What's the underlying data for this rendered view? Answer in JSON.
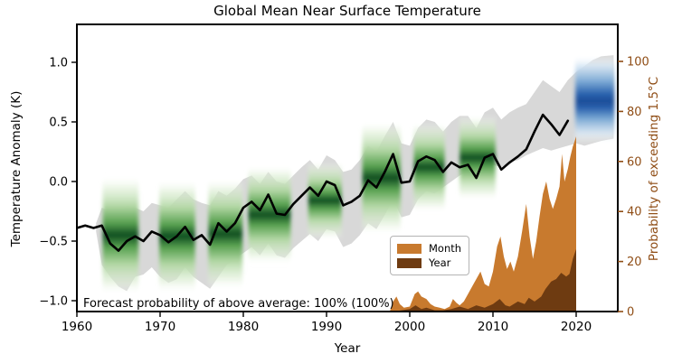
{
  "title": "Global Mean Near Surface Temperature",
  "annotation": {
    "text": "Forecast probability of above average: 100% (100%)"
  },
  "axes": {
    "left": {
      "label": "Temperature Anomaly (K)",
      "ticks": [
        {
          "v": 1.0,
          "label": "1.0"
        },
        {
          "v": 0.5,
          "label": "0.5"
        },
        {
          "v": 0.0,
          "label": "0.0"
        },
        {
          "v": -0.5,
          "label": "−0.5"
        },
        {
          "v": -1.0,
          "label": "−1.0"
        }
      ]
    },
    "right": {
      "label": "Probability of exceeding 1.5°C",
      "color": "#8f4d15",
      "ticks": [
        {
          "v": 0,
          "label": "0"
        },
        {
          "v": 20,
          "label": "20"
        },
        {
          "v": 40,
          "label": "40"
        },
        {
          "v": 60,
          "label": "60"
        },
        {
          "v": 80,
          "label": "80"
        },
        {
          "v": 100,
          "label": "100"
        }
      ]
    },
    "x": {
      "label": "Year",
      "ticks": [
        {
          "v": 1960,
          "label": "1960"
        },
        {
          "v": 1970,
          "label": "1970"
        },
        {
          "v": 1980,
          "label": "1980"
        },
        {
          "v": 1990,
          "label": "1990"
        },
        {
          "v": 2000,
          "label": "2000"
        },
        {
          "v": 2010,
          "label": "2010"
        },
        {
          "v": 2020,
          "label": "2020"
        }
      ]
    }
  },
  "legend": {
    "items": [
      {
        "label": "Month",
        "color": "#c87a2e"
      },
      {
        "label": "Year",
        "color": "#6e3b11"
      }
    ]
  },
  "colors": {
    "observed_line": "#000000",
    "uncertainty_band": "#d8d8d8",
    "month_area": "#c87a2e",
    "year_area": "#6e3b11",
    "right_axis": "#8f4d15",
    "hindcast_core_green": "#0e4d20",
    "forecast_core_blue": "#1b4c97"
  },
  "chart_data": {
    "type": "line",
    "title": "Global Mean Near Surface Temperature",
    "xlabel": "Year",
    "ylabel_left": "Temperature Anomaly (K)",
    "ylabel_right": "Probability of exceeding 1.5°C",
    "xlim": [
      1960,
      2025
    ],
    "ylim_left": [
      -1.09,
      1.32
    ],
    "ylim_right": [
      0,
      115
    ],
    "grid": false,
    "legend_position": "lower-center-right",
    "observed": {
      "name": "observed annual global mean temperature anomaly (K)",
      "x": [
        1960,
        1961,
        1962,
        1963,
        1964,
        1965,
        1966,
        1967,
        1968,
        1969,
        1970,
        1971,
        1972,
        1973,
        1974,
        1975,
        1976,
        1977,
        1978,
        1979,
        1980,
        1981,
        1982,
        1983,
        1984,
        1985,
        1986,
        1987,
        1988,
        1989,
        1990,
        1991,
        1992,
        1993,
        1994,
        1995,
        1996,
        1997,
        1998,
        1999,
        2000,
        2001,
        2002,
        2003,
        2004,
        2005,
        2006,
        2007,
        2008,
        2009,
        2010,
        2011,
        2012,
        2013,
        2014,
        2015,
        2016,
        2017,
        2018,
        2019
      ],
      "y": [
        -0.39,
        -0.37,
        -0.39,
        -0.37,
        -0.52,
        -0.58,
        -0.5,
        -0.46,
        -0.5,
        -0.42,
        -0.45,
        -0.51,
        -0.46,
        -0.38,
        -0.49,
        -0.45,
        -0.53,
        -0.35,
        -0.42,
        -0.35,
        -0.22,
        -0.17,
        -0.24,
        -0.11,
        -0.27,
        -0.28,
        -0.19,
        -0.12,
        -0.05,
        -0.12,
        0.0,
        -0.03,
        -0.2,
        -0.17,
        -0.12,
        0.01,
        -0.05,
        0.08,
        0.23,
        -0.01,
        0.0,
        0.17,
        0.21,
        0.18,
        0.08,
        0.16,
        0.12,
        0.14,
        0.03,
        0.2,
        0.23,
        0.1,
        0.16,
        0.21,
        0.27,
        0.42,
        0.56,
        0.48,
        0.39,
        0.51
      ]
    },
    "uncertainty_band": {
      "name": "hindcast/forecast ensemble spread (K)",
      "x": [
        1962.3,
        1963,
        1964,
        1965,
        1966,
        1967,
        1968,
        1969,
        1970,
        1971,
        1972,
        1973,
        1974,
        1975,
        1976,
        1977,
        1978,
        1979,
        1980,
        1981,
        1982,
        1983,
        1984,
        1985,
        1986,
        1987,
        1988,
        1989,
        1990,
        1991,
        1992,
        1993,
        1994,
        1995,
        1996,
        1997,
        1998,
        1999,
        2000,
        2001,
        2002,
        2003,
        2004,
        2005,
        2006,
        2007,
        2008,
        2009,
        2010,
        2011,
        2012,
        2013,
        2014,
        2015,
        2016,
        2017,
        2018,
        2019,
        2020,
        2021,
        2022,
        2023,
        2024.5
      ],
      "upper": [
        -0.35,
        -0.22,
        -0.25,
        -0.28,
        -0.2,
        -0.22,
        -0.25,
        -0.18,
        -0.2,
        -0.22,
        -0.15,
        -0.08,
        -0.15,
        -0.18,
        -0.2,
        -0.08,
        -0.12,
        -0.06,
        0.02,
        0.05,
        -0.02,
        0.08,
        0.0,
        -0.02,
        0.05,
        0.12,
        0.18,
        0.1,
        0.22,
        0.18,
        0.08,
        0.1,
        0.18,
        0.3,
        0.25,
        0.38,
        0.5,
        0.32,
        0.3,
        0.45,
        0.52,
        0.5,
        0.42,
        0.5,
        0.55,
        0.55,
        0.45,
        0.58,
        0.62,
        0.52,
        0.58,
        0.62,
        0.65,
        0.75,
        0.85,
        0.8,
        0.75,
        0.85,
        0.92,
        0.97,
        1.02,
        1.05,
        1.06
      ],
      "lower": [
        -0.42,
        -0.7,
        -0.8,
        -0.88,
        -0.92,
        -0.8,
        -0.78,
        -0.72,
        -0.8,
        -0.85,
        -0.82,
        -0.72,
        -0.8,
        -0.85,
        -0.9,
        -0.8,
        -0.7,
        -0.65,
        -0.6,
        -0.55,
        -0.62,
        -0.52,
        -0.62,
        -0.64,
        -0.56,
        -0.5,
        -0.44,
        -0.5,
        -0.4,
        -0.42,
        -0.55,
        -0.52,
        -0.45,
        -0.35,
        -0.4,
        -0.28,
        -0.15,
        -0.3,
        -0.28,
        -0.15,
        -0.08,
        -0.1,
        -0.05,
        0.0,
        0.05,
        0.08,
        0.05,
        0.1,
        0.14,
        0.12,
        0.16,
        0.18,
        0.22,
        0.25,
        0.28,
        0.26,
        0.28,
        0.3,
        0.32,
        0.3,
        0.32,
        0.34,
        0.36
      ]
    },
    "hindcast_patches": {
      "name": "hindcast probability smears (green, Greens colormap)",
      "patches": [
        {
          "x0": 1963.1,
          "x1": 1967.4,
          "center": -0.45,
          "half": 0.5
        },
        {
          "x0": 1969.9,
          "x1": 1974.2,
          "center": -0.46,
          "half": 0.48
        },
        {
          "x0": 1975.8,
          "x1": 1979.9,
          "center": -0.44,
          "half": 0.47
        },
        {
          "x0": 1980.6,
          "x1": 1985.7,
          "center": -0.28,
          "half": 0.42
        },
        {
          "x0": 1987.8,
          "x1": 1991.8,
          "center": -0.16,
          "half": 0.33
        },
        {
          "x0": 1994.3,
          "x1": 1998.9,
          "center": 0.03,
          "half": 0.48
        },
        {
          "x0": 2000.5,
          "x1": 2004.2,
          "center": 0.12,
          "half": 0.38
        },
        {
          "x0": 2006.0,
          "x1": 2010.3,
          "center": 0.2,
          "half": 0.36
        }
      ]
    },
    "forecast_patch": {
      "name": "forecast probability smear (blue, Blues colormap)",
      "x0": 2019.9,
      "x1": 2024.6,
      "center": 0.69,
      "half": 0.37
    },
    "month_prob": {
      "name": "Month — probability of exceeding 1.5°C (%)",
      "points": [
        [
          1997.6,
          0
        ],
        [
          1998.0,
          4
        ],
        [
          1998.4,
          6
        ],
        [
          1998.8,
          3
        ],
        [
          1999.3,
          1.5
        ],
        [
          2000.0,
          2
        ],
        [
          2000.6,
          7
        ],
        [
          2001.0,
          8
        ],
        [
          2001.4,
          6
        ],
        [
          2002.0,
          5
        ],
        [
          2002.5,
          3
        ],
        [
          2003.0,
          2
        ],
        [
          2003.6,
          1.5
        ],
        [
          2004.2,
          1
        ],
        [
          2004.8,
          2
        ],
        [
          2005.2,
          5
        ],
        [
          2005.6,
          3.5
        ],
        [
          2006.0,
          2.5
        ],
        [
          2006.5,
          4
        ],
        [
          2007.0,
          7
        ],
        [
          2007.5,
          10
        ],
        [
          2008.0,
          13
        ],
        [
          2008.5,
          16
        ],
        [
          2009.0,
          11
        ],
        [
          2009.5,
          10
        ],
        [
          2010.0,
          16
        ],
        [
          2010.5,
          26
        ],
        [
          2010.9,
          30
        ],
        [
          2011.3,
          22
        ],
        [
          2011.7,
          17
        ],
        [
          2012.1,
          20
        ],
        [
          2012.5,
          16
        ],
        [
          2013.0,
          22
        ],
        [
          2013.5,
          32
        ],
        [
          2014.0,
          43
        ],
        [
          2014.4,
          30
        ],
        [
          2014.8,
          21
        ],
        [
          2015.2,
          28
        ],
        [
          2015.6,
          38
        ],
        [
          2016.0,
          47
        ],
        [
          2016.4,
          52
        ],
        [
          2016.8,
          45
        ],
        [
          2017.2,
          41
        ],
        [
          2017.6,
          45
        ],
        [
          2018.0,
          50
        ],
        [
          2018.3,
          63
        ],
        [
          2018.6,
          52
        ],
        [
          2019.0,
          57
        ],
        [
          2019.3,
          62
        ],
        [
          2019.6,
          66
        ],
        [
          2019.9,
          69
        ],
        [
          2020.0,
          70
        ],
        [
          2020.0,
          0
        ]
      ]
    },
    "year_prob": {
      "name": "Year — probability of exceeding 1.5°C (%)",
      "points": [
        [
          1998.0,
          0
        ],
        [
          1999.0,
          0.5
        ],
        [
          2000.0,
          1
        ],
        [
          2000.7,
          2.5
        ],
        [
          2001.4,
          1
        ],
        [
          2002.0,
          1.5
        ],
        [
          2003.0,
          0.5
        ],
        [
          2004.0,
          0.5
        ],
        [
          2005.0,
          1
        ],
        [
          2006.0,
          2
        ],
        [
          2007.0,
          1
        ],
        [
          2008.0,
          2.5
        ],
        [
          2009.0,
          1.5
        ],
        [
          2010.0,
          3
        ],
        [
          2010.8,
          5
        ],
        [
          2011.5,
          2.5
        ],
        [
          2012.0,
          2
        ],
        [
          2013.0,
          4
        ],
        [
          2013.8,
          3
        ],
        [
          2014.3,
          5.5
        ],
        [
          2015.0,
          4
        ],
        [
          2015.8,
          6
        ],
        [
          2016.3,
          9
        ],
        [
          2017.0,
          12
        ],
        [
          2017.6,
          13
        ],
        [
          2018.2,
          15.5
        ],
        [
          2018.8,
          14
        ],
        [
          2019.2,
          15
        ],
        [
          2019.6,
          21
        ],
        [
          2020.0,
          25
        ],
        [
          2020.0,
          0
        ]
      ]
    }
  }
}
